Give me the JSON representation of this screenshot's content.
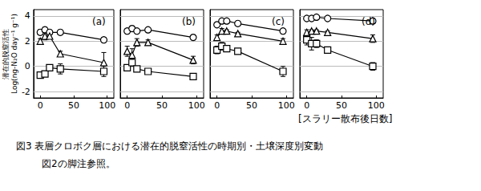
{
  "figure": {
    "xlabel": "[スラリー散布後日数]",
    "caption": [
      "図3 表層クロボク層における潜在的脱窒活性の時期別・土壌深度別変動",
      "図2の脚注参照。"
    ]
  },
  "chart_data": [
    {
      "type": "line",
      "title": "(a)",
      "ylabel": "潜在的脱窒活性\nLog(ng-N₂O day⁻¹ g⁻¹)",
      "x": [
        0,
        7,
        14,
        30,
        95
      ],
      "xlim": [
        -10,
        110
      ],
      "xticks": [
        0,
        50,
        100
      ],
      "ylim": [
        -2.5,
        4.5
      ],
      "yticks": [
        -2,
        0,
        2,
        4
      ],
      "grid": true,
      "tick_labels": true,
      "series": [
        {
          "marker": "circle",
          "color": "#000000",
          "values": [
            2.7,
            2.9,
            2.7,
            2.7,
            2.1
          ],
          "errors": [
            0.2,
            0.2,
            0.1,
            0.1,
            0.2
          ]
        },
        {
          "marker": "triangle",
          "color": "#000000",
          "values": [
            2.0,
            2.4,
            2.4,
            1.0,
            0.3
          ],
          "errors": [
            0.2,
            0.3,
            0.2,
            0.2,
            0.8
          ]
        },
        {
          "marker": "square",
          "color": "#000000",
          "values": [
            -0.7,
            -0.6,
            -0.1,
            -0.2,
            -0.4
          ],
          "errors": [
            0.2,
            0.2,
            0.2,
            0.4,
            0.4
          ]
        }
      ]
    },
    {
      "type": "line",
      "title": "(b)",
      "x": [
        0,
        7,
        14,
        30,
        95
      ],
      "xlim": [
        -10,
        110
      ],
      "xticks": [
        0,
        50,
        100
      ],
      "ylim": [
        -2.5,
        4.5
      ],
      "yticks": [
        -2,
        0,
        2,
        4
      ],
      "grid": true,
      "tick_labels": "x",
      "series": [
        {
          "marker": "circle",
          "color": "#000000",
          "values": [
            2.8,
            3.0,
            2.8,
            2.9,
            2.3
          ],
          "errors": [
            0.2,
            0.2,
            0.1,
            0.1,
            0.2
          ]
        },
        {
          "marker": "triangle",
          "color": "#000000",
          "values": [
            1.2,
            0.9,
            1.9,
            1.9,
            0.5
          ],
          "errors": [
            0.4,
            0.5,
            0.3,
            0.2,
            0.3
          ]
        },
        {
          "marker": "square",
          "color": "#000000",
          "values": [
            -0.1,
            0.3,
            -0.2,
            -0.4,
            -0.8
          ],
          "errors": [
            0.2,
            0.3,
            0.2,
            0.2,
            0.2
          ]
        }
      ]
    },
    {
      "type": "line",
      "title": "(c)",
      "x": [
        0,
        7,
        14,
        30,
        95
      ],
      "xlim": [
        -10,
        110
      ],
      "xticks": [
        0,
        50,
        100
      ],
      "ylim": [
        -2.5,
        4.5
      ],
      "yticks": [
        -2,
        0,
        2,
        4
      ],
      "grid": true,
      "tick_labels": "x",
      "series": [
        {
          "marker": "circle",
          "color": "#000000",
          "values": [
            3.3,
            3.6,
            3.6,
            3.4,
            2.8
          ],
          "errors": [
            0.1,
            0.1,
            0.1,
            0.1,
            0.2
          ]
        },
        {
          "marker": "triangle",
          "color": "#000000",
          "values": [
            2.3,
            2.8,
            2.8,
            2.6,
            2.0
          ],
          "errors": [
            0.2,
            0.2,
            0.1,
            0.1,
            0.2
          ]
        },
        {
          "marker": "square",
          "color": "#000000",
          "values": [
            1.3,
            1.6,
            1.4,
            1.2,
            -0.4
          ],
          "errors": [
            0.3,
            0.3,
            0.2,
            0.2,
            0.4
          ]
        }
      ]
    },
    {
      "type": "line",
      "title": "(d)",
      "x": [
        0,
        7,
        14,
        30,
        95
      ],
      "xlim": [
        -10,
        110
      ],
      "xticks": [
        0,
        50,
        100
      ],
      "ylim": [
        -2.5,
        4.5
      ],
      "yticks": [
        -2,
        0,
        2,
        4
      ],
      "grid": true,
      "tick_labels": "x",
      "series": [
        {
          "marker": "circle",
          "color": "#000000",
          "values": [
            3.8,
            3.8,
            3.9,
            3.8,
            3.6
          ],
          "errors": [
            0.1,
            0.1,
            0.1,
            0.1,
            0.2
          ]
        },
        {
          "marker": "triangle",
          "color": "#000000",
          "values": [
            2.7,
            2.8,
            2.8,
            2.7,
            2.2
          ],
          "errors": [
            0.2,
            0.1,
            0.1,
            0.1,
            0.3
          ]
        },
        {
          "marker": "square",
          "color": "#000000",
          "values": [
            2.1,
            1.8,
            1.8,
            1.3,
            0.0
          ],
          "errors": [
            0.4,
            0.5,
            0.3,
            0.2,
            0.3
          ]
        }
      ]
    }
  ]
}
